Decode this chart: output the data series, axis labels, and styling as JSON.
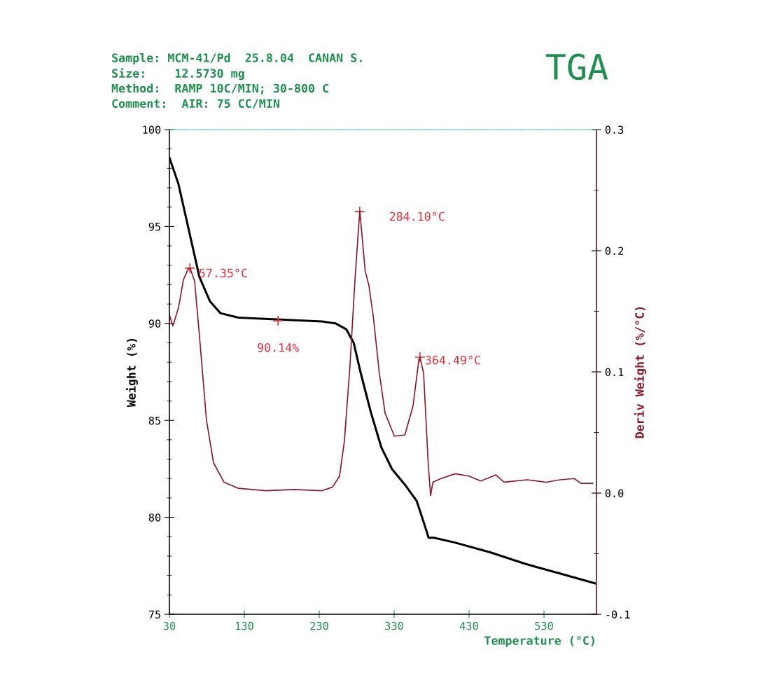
{
  "chart_data": {
    "type": "line",
    "title": "TGA",
    "annotations": [
      "Sample: MCM-41/Pd  25.8.04  CANAN S.",
      "Size:    12.5730 mg",
      "Method:  RAMP 10C/MIN; 30-800 C",
      "Comment:  AIR: 75 CC/MIN",
      {
        "text": "57.35°C",
        "x": 57.35,
        "y": 92.85
      },
      {
        "text": "284.10°C",
        "x": 284.1,
        "y": 95.77
      },
      {
        "text": "364.49°C",
        "x": 364.49,
        "y": 88.26
      },
      {
        "text": "90.14%",
        "x": 175,
        "y": 90.14
      }
    ],
    "xlabel": "Temperature (°C)",
    "ylabel": "Weight (%)",
    "y2label": "Deriv Weight (%/°C)",
    "xlim": [
      30,
      600
    ],
    "xticks": [
      30,
      130,
      230,
      330,
      430,
      530
    ],
    "ylim": [
      75,
      100
    ],
    "yticks": [
      75,
      80,
      85,
      90,
      95,
      100
    ],
    "y2lim": [
      -0.1,
      0.3
    ],
    "y2ticks": [
      -0.1,
      {
        "value": 0,
        "label": "0.0"
      },
      0.1,
      0.2,
      0.3
    ],
    "grid": false,
    "series": [
      {
        "color": "#000000",
        "x": [
          30,
          42,
          56,
          70,
          84,
          98,
          122,
          178,
          234,
          252,
          266,
          276,
          285,
          299,
          313,
          327,
          346,
          360,
          369,
          376,
          383,
          411,
          458,
          505,
          552,
          598
        ],
        "values": [
          98.55,
          97.2,
          94.8,
          92.4,
          91.15,
          90.53,
          90.3,
          90.2,
          90.1,
          90.0,
          89.7,
          89.0,
          87.5,
          85.4,
          83.6,
          82.5,
          81.6,
          80.85,
          79.8,
          78.95,
          78.95,
          78.7,
          78.2,
          77.6,
          77.1,
          76.6
        ]
      },
      {
        "color": "#8b1a2a",
        "axis": "y2",
        "x": [
          30,
          34.7,
          42.1,
          48.7,
          54.3,
          57.35,
          63.6,
          70.2,
          79.5,
          88.9,
          102.9,
          121.6,
          159,
          196.4,
          233.7,
          247.8,
          257.1,
          263.6,
          271.1,
          277.7,
          284.1,
          291.4,
          296.1,
          302.3,
          310,
          317.9,
          330.3,
          344.3,
          355.2,
          363,
          364.49,
          369.3,
          375.5,
          378.6,
          381.7,
          392.6,
          411.3,
          430,
          445.6,
          465.8,
          476.7,
          507.5,
          532.8,
          551.5,
          570.2,
          579.5,
          595.1
        ],
        "values": [
          0.147,
          0.138,
          0.153,
          0.176,
          0.184,
          0.186,
          0.175,
          0.129,
          0.06,
          0.025,
          0.009,
          0.004,
          0.002,
          0.003,
          0.002,
          0.005,
          0.014,
          0.043,
          0.106,
          0.176,
          0.233,
          0.183,
          0.172,
          0.145,
          0.1,
          0.066,
          0.047,
          0.048,
          0.072,
          0.11,
          0.112,
          0.099,
          0.024,
          -0.002,
          0.009,
          0.012,
          0.016,
          0.014,
          0.01,
          0.015,
          0.009,
          0.011,
          0.009,
          0.011,
          0.012,
          0.008,
          0.008
        ]
      }
    ]
  }
}
